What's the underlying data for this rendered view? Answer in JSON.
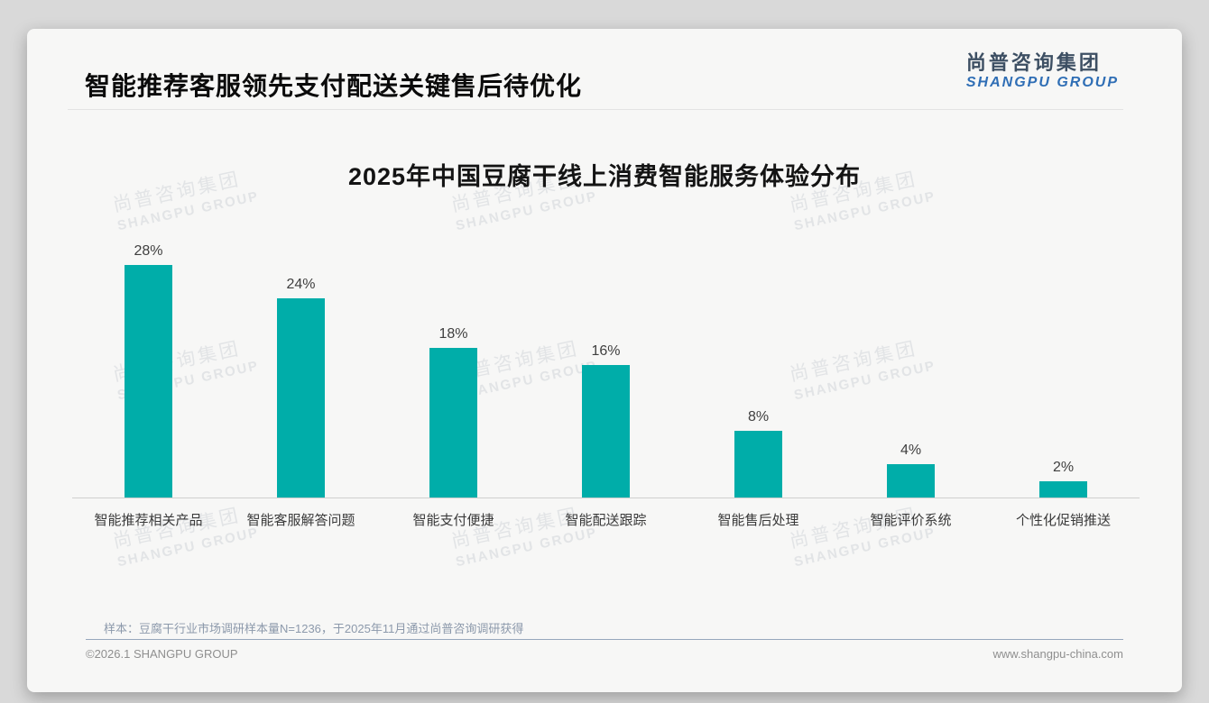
{
  "header": {
    "title": "智能推荐客服领先支付配送关键售后待优化"
  },
  "logo": {
    "cn": "尚普咨询集团",
    "en": "SHANGPU GROUP"
  },
  "watermark": {
    "cn": "尚普咨询集团",
    "en": "SHANGPU GROUP"
  },
  "chart_data": {
    "type": "bar",
    "title": "2025年中国豆腐干线上消费智能服务体验分布",
    "categories": [
      "智能推荐相关产品",
      "智能客服解答问题",
      "智能支付便捷",
      "智能配送跟踪",
      "智能售后处理",
      "智能评价系统",
      "个性化促销推送"
    ],
    "values": [
      28,
      24,
      18,
      16,
      8,
      4,
      2
    ],
    "value_labels": [
      "28%",
      "24%",
      "18%",
      "16%",
      "8%",
      "4%",
      "2%"
    ],
    "unit": "%",
    "ylim": [
      0,
      30
    ],
    "grid": false,
    "legend": "none",
    "bar_color": "#00ada9"
  },
  "footnote": "样本：豆腐干行业市场调研样本量N=1236，于2025年11月通过尚普咨询调研获得",
  "footer": {
    "copyright": "©2026.1 SHANGPU GROUP",
    "website": "www.shangpu-china.com"
  },
  "colors": {
    "bar": "#00ada9",
    "logo_cn": "#3d4f63",
    "logo_en": "#2f6eb5",
    "card_bg": "#f7f7f6",
    "page_bg": "#d9d9d9"
  }
}
